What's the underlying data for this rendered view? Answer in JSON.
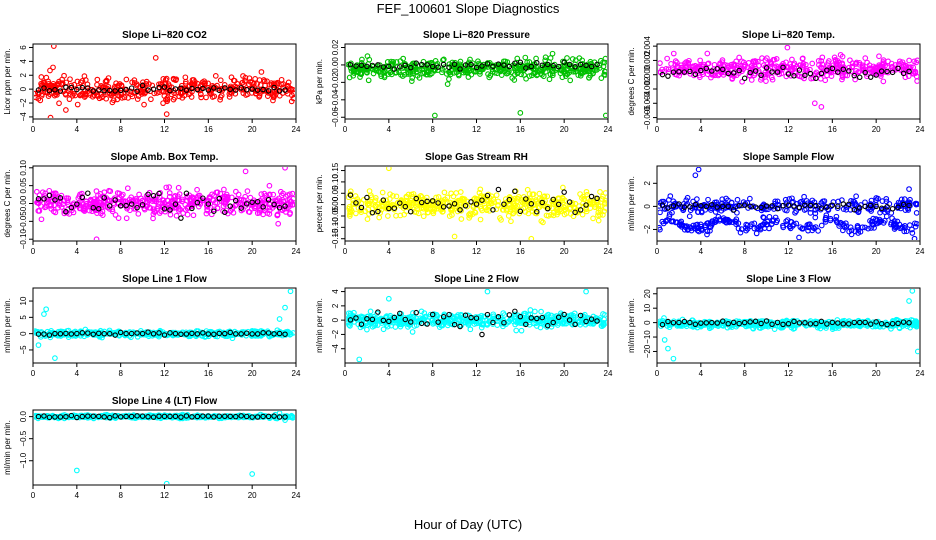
{
  "title": "FEF_100601  Slope Diagnostics",
  "xlabel": "Hour of Day (UTC)",
  "chart_data": [
    {
      "type": "scatter",
      "title": "Slope Li−820 CO2",
      "ylabel": "Licor ppm per min.",
      "color": "#ff0000",
      "xlim": [
        0,
        24
      ],
      "ylim": [
        -4.3,
        6.5
      ],
      "xticks": [
        0,
        4,
        8,
        12,
        16,
        20,
        24
      ],
      "yticks": [
        -4,
        -2,
        0,
        2,
        4,
        6
      ],
      "yticklabels": [
        "−4",
        "−2",
        "0",
        "2",
        "4",
        "6"
      ],
      "seed": 11,
      "center": 0,
      "spread": 1.6,
      "n": 420,
      "black_spread": 0.3,
      "outliers": [
        [
          1.9,
          6.2
        ],
        [
          1.6,
          -4.1
        ],
        [
          3.0,
          -3.0
        ],
        [
          12.2,
          -3.6
        ],
        [
          11.2,
          4.5
        ]
      ]
    },
    {
      "type": "scatter",
      "title": "Slope Li−820 Pressure",
      "ylabel": "kPa per min.",
      "color": "#00c000",
      "xlim": [
        0,
        24
      ],
      "ylim": [
        -0.062,
        0.024
      ],
      "xticks": [
        0,
        4,
        8,
        12,
        16,
        20,
        24
      ],
      "yticks": [
        -0.06,
        -0.04,
        -0.02,
        0.0,
        0.02
      ],
      "yticklabels": [
        "−0.06",
        "−0.04",
        "−0.02",
        "0.00",
        "0.02"
      ],
      "seed": 23,
      "center": -0.004,
      "spread": 0.009,
      "n": 480,
      "black_spread": 0.003,
      "outliers": [
        [
          8.2,
          -0.058
        ],
        [
          16.0,
          -0.055
        ],
        [
          23.8,
          -0.058
        ]
      ]
    },
    {
      "type": "scatter",
      "title": "Slope Li−820 Temp.",
      "ylabel": "degrees C per min.",
      "color": "#ff00ff",
      "xlim": [
        0,
        24
      ],
      "ylim": [
        -0.0062,
        0.0043
      ],
      "xticks": [
        0,
        4,
        8,
        12,
        16,
        20,
        24
      ],
      "yticks": [
        -0.006,
        -0.004,
        -0.002,
        0.0,
        0.002,
        0.004
      ],
      "yticklabels": [
        "−0.006",
        "−0.004",
        "−0.002",
        "0.000",
        "0.002",
        "0.004"
      ],
      "seed": 37,
      "center": 0.0008,
      "spread": 0.0013,
      "n": 420,
      "black_spread": 0.0006,
      "outliers": [
        [
          11.9,
          0.0038
        ],
        [
          15.0,
          -0.0045
        ],
        [
          14.4,
          -0.004
        ]
      ]
    },
    {
      "type": "scatter",
      "title": "Slope Amb. Box Temp.",
      "ylabel": "degrees C per min.",
      "color": "#ff00ff",
      "xlim": [
        0,
        24
      ],
      "ylim": [
        -0.105,
        0.105
      ],
      "xticks": [
        0,
        4,
        8,
        12,
        16,
        20,
        24
      ],
      "yticks": [
        -0.1,
        -0.05,
        0.0,
        0.05,
        0.1
      ],
      "yticklabels": [
        "−0.10",
        "−0.05",
        "0.00",
        "0.05",
        "0.10"
      ],
      "seed": 41,
      "center": 0,
      "spread": 0.032,
      "n": 480,
      "black_spread": 0.03,
      "outliers": [
        [
          23.0,
          0.1
        ],
        [
          5.8,
          -0.1
        ],
        [
          19.4,
          0.09
        ]
      ]
    },
    {
      "type": "scatter",
      "title": "Slope Gas Stream RH",
      "ylabel": "percent per min.",
      "color": "#ffff00",
      "xlim": [
        0,
        24
      ],
      "ylim": [
        -0.16,
        0.17
      ],
      "xticks": [
        0,
        4,
        8,
        12,
        16,
        20,
        24
      ],
      "yticks": [
        -0.15,
        -0.1,
        -0.05,
        0.0,
        0.05,
        0.1,
        0.15
      ],
      "yticklabels": [
        "−0.15",
        "−0.10",
        "−0.05",
        "0.00",
        "0.05",
        "0.10",
        "0.15"
      ],
      "seed": 53,
      "center": 0,
      "spread": 0.05,
      "n": 480,
      "black_spread": 0.05,
      "outliers": [
        [
          4.0,
          0.16
        ],
        [
          17.0,
          -0.15
        ],
        [
          10.0,
          -0.14
        ]
      ]
    },
    {
      "type": "scatter",
      "title": "Slope Sample Flow",
      "ylabel": "ml/min per min.",
      "color": "#0000ff",
      "xlim": [
        0,
        24
      ],
      "ylim": [
        -3.0,
        3.5
      ],
      "xticks": [
        0,
        4,
        8,
        12,
        16,
        20,
        24
      ],
      "yticks": [
        -2,
        0,
        2
      ],
      "yticklabels": [
        "−2",
        "0",
        "2"
      ],
      "seed": 67,
      "center": 0,
      "spread": 0.6,
      "n": 480,
      "black_spread": 0.2,
      "band": [
        -1.6,
        0.6
      ],
      "outliers": [
        [
          3.8,
          3.2
        ],
        [
          3.5,
          2.7
        ],
        [
          23.5,
          -2.8
        ],
        [
          23.0,
          1.5
        ]
      ]
    },
    {
      "type": "scatter",
      "title": "Slope Line 1 Flow",
      "ylabel": "ml/min per min.",
      "color": "#00ffff",
      "xlim": [
        0,
        24
      ],
      "ylim": [
        -9,
        14
      ],
      "xticks": [
        0,
        4,
        8,
        12,
        16,
        20,
        24
      ],
      "yticks": [
        -5,
        0,
        5,
        10
      ],
      "yticklabels": [
        "−5",
        "0",
        "5",
        "10"
      ],
      "seed": 71,
      "center": 0,
      "spread": 0.8,
      "n": 420,
      "black_spread": 0.3,
      "outliers": [
        [
          1.2,
          7.5
        ],
        [
          1.0,
          6.0
        ],
        [
          2.0,
          -7.5
        ],
        [
          0.5,
          -3.5
        ],
        [
          23.5,
          13.0
        ],
        [
          23.0,
          8.0
        ],
        [
          22.5,
          4.5
        ]
      ]
    },
    {
      "type": "scatter",
      "title": "Slope Line 2 Flow",
      "ylabel": "ml/min per min.",
      "color": "#00ffff",
      "xlim": [
        0,
        24
      ],
      "ylim": [
        -6,
        4.5
      ],
      "xticks": [
        0,
        4,
        8,
        12,
        16,
        20,
        24
      ],
      "yticks": [
        -4,
        -2,
        0,
        2,
        4
      ],
      "yticklabels": [
        "−4",
        "−2",
        "0",
        "2",
        "4"
      ],
      "seed": 83,
      "center": 0,
      "spread": 0.9,
      "n": 480,
      "black_spread": 1.0,
      "outliers": [
        [
          1.3,
          -5.5
        ],
        [
          13.0,
          4.0
        ],
        [
          22.0,
          4.0
        ],
        [
          4.0,
          3.0
        ]
      ]
    },
    {
      "type": "scatter",
      "title": "Slope Line 3 Flow",
      "ylabel": "ml/min per min.",
      "color": "#00ffff",
      "xlim": [
        0,
        24
      ],
      "ylim": [
        -28,
        24
      ],
      "xticks": [
        0,
        4,
        8,
        12,
        16,
        20,
        24
      ],
      "yticks": [
        -20,
        -10,
        0,
        10,
        20
      ],
      "yticklabels": [
        "−20",
        "−10",
        "0",
        "10",
        "20"
      ],
      "seed": 97,
      "center": -1,
      "spread": 2.5,
      "n": 480,
      "black_spread": 1.2,
      "outliers": [
        [
          1.0,
          -18
        ],
        [
          1.5,
          -25
        ],
        [
          0.7,
          -12
        ],
        [
          23.3,
          22
        ],
        [
          23.0,
          15
        ],
        [
          23.8,
          -20
        ]
      ]
    },
    {
      "type": "scatter",
      "title": "Slope Line 4 (LT) Flow",
      "ylabel": "ml/min per min.",
      "color": "#00ffff",
      "xlim": [
        0,
        24
      ],
      "ylim": [
        -1.55,
        0.15
      ],
      "xticks": [
        0,
        4,
        8,
        12,
        16,
        20,
        24
      ],
      "yticks": [
        -1.0,
        -0.5,
        0.0
      ],
      "yticklabels": [
        "−1.0",
        "−0.5",
        "0.0"
      ],
      "seed": 101,
      "center": 0,
      "spread": 0.03,
      "n": 420,
      "black_spread": 0.02,
      "outliers": [
        [
          4.0,
          -1.22
        ],
        [
          12.2,
          -1.52
        ],
        [
          20.0,
          -1.3
        ],
        [
          23.0,
          -0.08
        ],
        [
          22.5,
          0.08
        ]
      ]
    }
  ]
}
